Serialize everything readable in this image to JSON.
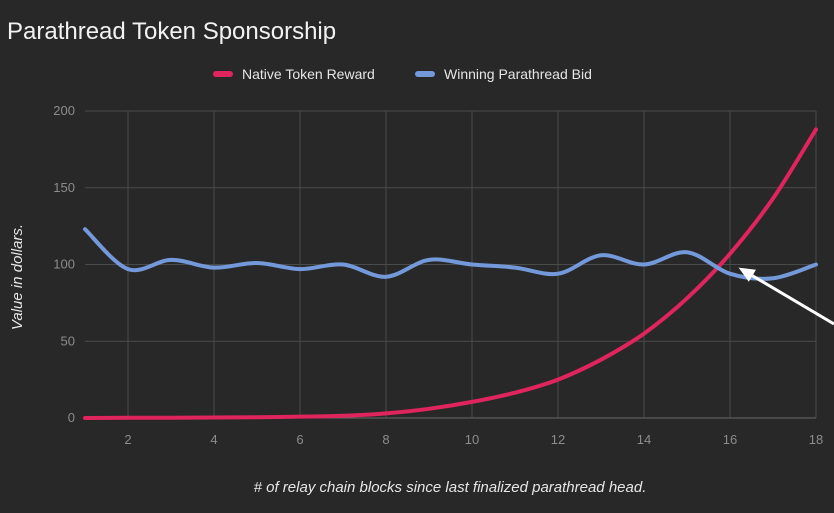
{
  "chart_data": {
    "type": "line",
    "title": "Parathread Token Sponsorship",
    "xlabel": "# of relay chain blocks since last finalized parathread head.",
    "ylabel": "Value in dollars.",
    "xlim": [
      1,
      18
    ],
    "ylim": [
      0,
      200
    ],
    "xticks": [
      2,
      4,
      6,
      8,
      10,
      12,
      14,
      16,
      18
    ],
    "yticks": [
      0,
      50,
      100,
      150,
      200
    ],
    "grid": true,
    "legend_position": "top",
    "x": [
      1,
      2,
      3,
      4,
      5,
      6,
      7,
      8,
      9,
      10,
      11,
      12,
      13,
      14,
      15,
      16,
      17,
      18
    ],
    "series": [
      {
        "name": "Native Token Reward",
        "color": "#e0245e",
        "values": [
          0,
          0.1,
          0.2,
          0.3,
          0.5,
          0.9,
          1.5,
          3.0,
          6.0,
          10.5,
          16.5,
          25,
          38,
          55,
          78,
          107,
          143,
          188
        ]
      },
      {
        "name": "Winning Parathread Bid",
        "color": "#7499db",
        "values": [
          123,
          97,
          103,
          98,
          101,
          97,
          100,
          92,
          103,
          100,
          98,
          94,
          106,
          100,
          108,
          94,
          91,
          100
        ]
      }
    ],
    "annotation": {
      "type": "arrow",
      "color": "#ffffff",
      "points_to": {
        "x": 16.2,
        "y": 98
      }
    }
  }
}
